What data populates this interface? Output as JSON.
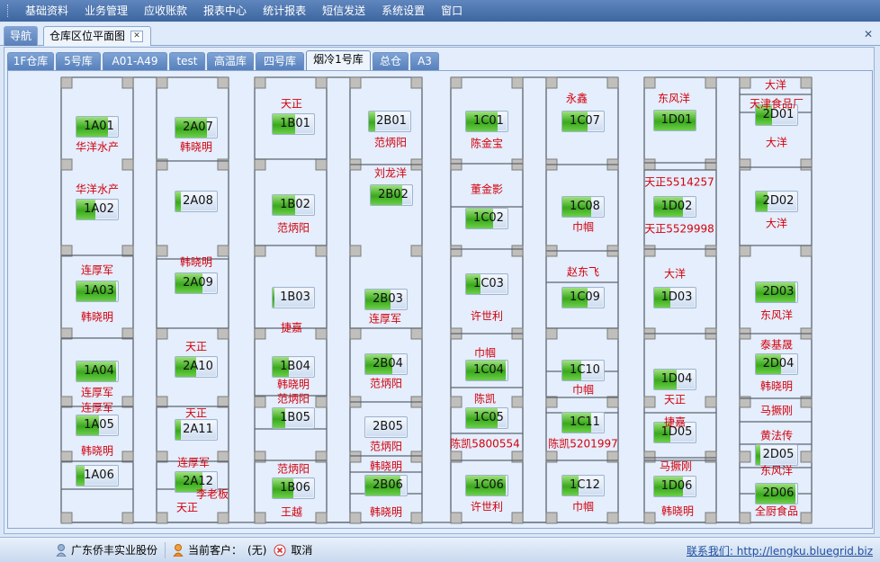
{
  "menu": [
    "基础资料",
    "业务管理",
    "应收账款",
    "报表中心",
    "统计报表",
    "短信发送",
    "系统设置",
    "窗口"
  ],
  "doc_tabs": {
    "nav": "导航",
    "map": "仓库区位平面图",
    "close_symbol": "✕"
  },
  "window_close_symbol": "✕",
  "warehouse_tabs": [
    "1F仓库",
    "5号库",
    "A01-A49",
    "test",
    "高温库",
    "四号库",
    "烟冷1号库",
    "总仓",
    "A3"
  ],
  "active_warehouse_tab": "烟冷1号库",
  "colors": {
    "customer_text": "#d4000c",
    "fill_green": "#3aa81c",
    "menu_bg": "#4a72ab"
  },
  "bins": [
    {
      "id": "1A01",
      "fill": 0.75
    },
    {
      "id": "1A02",
      "fill": 0.45
    },
    {
      "id": "1A03",
      "fill": 0.95
    },
    {
      "id": "1A04",
      "fill": 0.95
    },
    {
      "id": "1A05",
      "fill": 0.55
    },
    {
      "id": "1A06",
      "fill": 0.2
    },
    {
      "id": "2A07",
      "fill": 0.75
    },
    {
      "id": "2A08",
      "fill": 0.12
    },
    {
      "id": "2A09",
      "fill": 0.65
    },
    {
      "id": "2A10",
      "fill": 0.5
    },
    {
      "id": "2A11",
      "fill": 0.12
    },
    {
      "id": "2A12",
      "fill": 0.65
    },
    {
      "id": "1B01",
      "fill": 0.55
    },
    {
      "id": "1B02",
      "fill": 0.55
    },
    {
      "id": "1B03",
      "fill": 0.05
    },
    {
      "id": "1B04",
      "fill": 0.4
    },
    {
      "id": "1B05",
      "fill": 0.3
    },
    {
      "id": "1B06",
      "fill": 0.5
    },
    {
      "id": "2B01",
      "fill": 0.15
    },
    {
      "id": "2B02",
      "fill": 0.75
    },
    {
      "id": "2B03",
      "fill": 0.6
    },
    {
      "id": "2B04",
      "fill": 0.65
    },
    {
      "id": "2B05",
      "fill": 0
    },
    {
      "id": "2B06",
      "fill": 0.85
    },
    {
      "id": "1C01",
      "fill": 0.75
    },
    {
      "id": "1C02",
      "fill": 0.65
    },
    {
      "id": "1C03",
      "fill": 0.35
    },
    {
      "id": "1C04",
      "fill": 0.95
    },
    {
      "id": "1C05",
      "fill": 0.75
    },
    {
      "id": "1C06",
      "fill": 0.95
    },
    {
      "id": "1C07",
      "fill": 0.6
    },
    {
      "id": "1C08",
      "fill": 0.7
    },
    {
      "id": "1C09",
      "fill": 0.6
    },
    {
      "id": "1C10",
      "fill": 0.45
    },
    {
      "id": "1C11",
      "fill": 0.7
    },
    {
      "id": "1C12",
      "fill": 0.4
    },
    {
      "id": "1D01",
      "fill": 1.0
    },
    {
      "id": "1D02",
      "fill": 0.7
    },
    {
      "id": "1D03",
      "fill": 0.4
    },
    {
      "id": "1D04",
      "fill": 0.55
    },
    {
      "id": "1D05",
      "fill": 0.4
    },
    {
      "id": "1D06",
      "fill": 0.7
    },
    {
      "id": "2D01",
      "fill": 0.4
    },
    {
      "id": "2D02",
      "fill": 0.28
    },
    {
      "id": "2D03",
      "fill": 0.95
    },
    {
      "id": "2D04",
      "fill": 0.6
    },
    {
      "id": "2D05",
      "fill": 0.1
    },
    {
      "id": "2D06",
      "fill": 0.95
    }
  ],
  "customer_labels": [
    "华洋水产",
    "华洋水产",
    "韩晓明",
    "韩晓明",
    "连厚军",
    "韩晓明",
    "天正",
    "连厚军",
    "连厚军",
    "天正",
    "韩晓明",
    "连厚军",
    "李老板",
    "天正",
    "天正",
    "范炳阳",
    "刘龙洋",
    "范炳阳",
    "捷嘉",
    "连厚军",
    "范炳阳",
    "韩晓明",
    "范炳阳",
    "范炳阳",
    "韩晓明",
    "范炳阳",
    "韩晓明",
    "王越",
    "永鑫",
    "陈金宝",
    "董金影",
    "巾帼",
    "赵东飞",
    "许世利",
    "巾帼",
    "巾帼",
    "陈凯",
    "陈凯5800554",
    "陈凯5201997",
    "许世利",
    "巾帼",
    "东风洋",
    "大洋",
    "天津食品厂",
    "大洋",
    "天正5514257",
    "大洋",
    "天正5529998",
    "大洋",
    "东风洋",
    "泰基晟",
    "韩晓明",
    "天正",
    "马撅刚",
    "捷嘉",
    "黄法传",
    "马撅刚",
    "东风洋",
    "韩晓明",
    "全厨食品"
  ],
  "status": {
    "company": "广东侨丰实业股份",
    "current_customer_label": "当前客户：",
    "current_customer_value": "(无)",
    "cancel": "取消",
    "contact": "联系我们: http://lengku.bluegrid.biz"
  }
}
